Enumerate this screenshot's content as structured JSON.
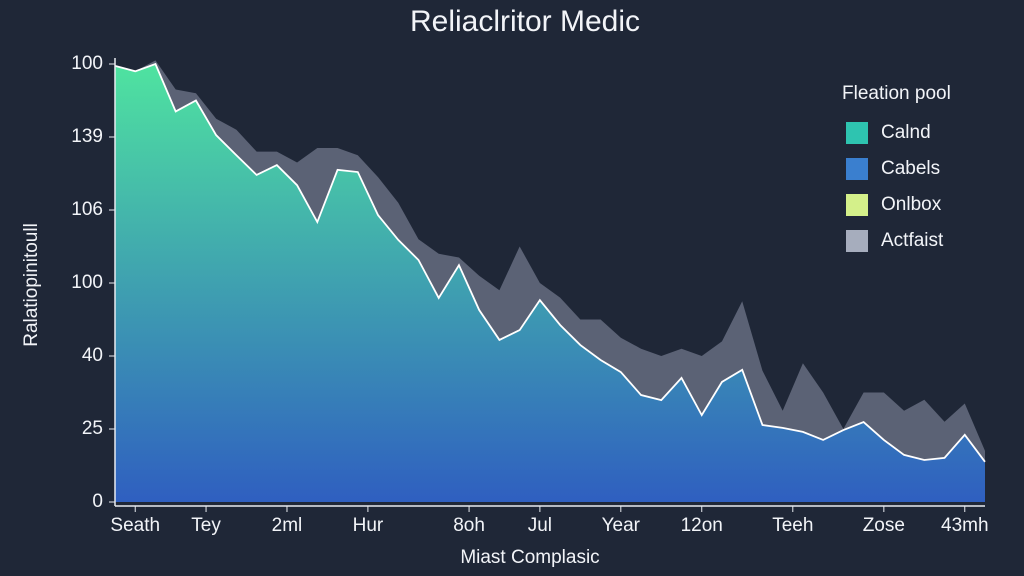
{
  "chart_data": {
    "type": "area",
    "title": "Reliaclritor Medic",
    "x_label": "Miast Complasic",
    "y_label": "Ralatiopinitoull",
    "x": [
      0,
      1,
      2,
      3,
      4,
      5,
      6,
      7,
      8,
      9,
      10,
      11,
      12,
      13,
      14,
      15,
      16,
      17,
      18,
      19,
      20,
      21,
      22,
      23,
      24,
      25,
      26,
      27,
      28,
      29,
      30,
      31,
      32,
      33,
      34,
      35,
      36,
      37,
      38,
      39,
      40,
      41,
      42,
      43
    ],
    "series": [
      {
        "color": "#5b6275",
        "values": [
          119,
          118,
          121,
          113,
          112,
          105,
          102,
          96,
          96,
          93,
          97,
          97,
          95,
          89,
          82,
          72,
          68,
          67,
          62,
          58,
          70,
          60,
          56,
          50,
          50,
          45,
          42,
          40,
          42,
          40,
          44,
          55,
          36,
          25,
          38,
          30,
          20,
          30,
          30,
          25,
          28,
          22,
          27,
          14
        ]
      },
      {
        "colors": [
          "#4fe3a0",
          "#2f5fc0"
        ],
        "values": [
          119.5,
          118,
          120,
          107,
          110,
          100.5,
          95,
          89.6,
          92.3,
          86.8,
          76.7,
          91,
          90.4,
          78.6,
          71.8,
          66.3,
          55.9,
          64.9,
          52.6,
          44.4,
          47.1,
          55.3,
          48.5,
          43,
          38.9,
          35.6,
          29.3,
          27.9,
          34,
          23.8,
          32.9,
          36.2,
          21.1,
          20.3,
          19.2,
          17,
          19.7,
          21.9,
          17,
          12.9,
          11.5,
          12.1,
          18.4,
          11
        ]
      }
    ],
    "xlim": [
      0,
      43
    ],
    "xticks": [
      {
        "value": 1,
        "label": "Seath"
      },
      {
        "value": 4.5,
        "label": "Tey"
      },
      {
        "value": 8.5,
        "label": "2ml"
      },
      {
        "value": 12.5,
        "label": "Hur"
      },
      {
        "value": 17.5,
        "label": "8oh"
      },
      {
        "value": 21,
        "label": "Jul"
      },
      {
        "value": 25,
        "label": "Year"
      },
      {
        "value": 29,
        "label": "12on"
      },
      {
        "value": 33.5,
        "label": "Teeh"
      },
      {
        "value": 38,
        "label": "Zose"
      },
      {
        "value": 42,
        "label": "43mh"
      }
    ],
    "ylim": [
      0,
      120
    ],
    "yticks": [
      0,
      {
        "value": 20,
        "label": "25"
      },
      40,
      {
        "value": 60,
        "label": "100"
      },
      {
        "value": 80,
        "label": "106"
      },
      {
        "value": 100,
        "label": "139"
      },
      {
        "value": 120,
        "label": "100"
      }
    ],
    "legend": {
      "title": "Fleation pool",
      "entries": [
        {
          "name": "Calnd",
          "color": "#2ec4b0"
        },
        {
          "name": "Cabels",
          "color": "#3a7fcf"
        },
        {
          "name": "Onlbox",
          "color": "#d4f08a"
        },
        {
          "name": "Actfaist",
          "color": "#a6adbd"
        }
      ]
    }
  }
}
